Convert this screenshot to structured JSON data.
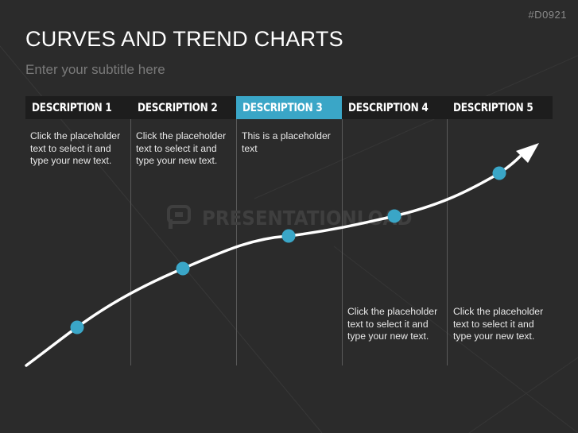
{
  "slide": {
    "code": "#D0921",
    "title": "CURVES AND TREND CHARTS",
    "subtitle": "Enter your subtitle here",
    "watermark": "PRESENTATIONLOAD",
    "accent_color": "#3aa6c7"
  },
  "columns": [
    {
      "label": "DESCRIPTION 1",
      "text": "Click the placeholder text to select it and type your new text.",
      "text_position": "top"
    },
    {
      "label": "DESCRIPTION 2",
      "text": "Click the placeholder text to select it and type your new text.",
      "text_position": "top"
    },
    {
      "label": "DESCRIPTION 3",
      "text": "This is a placeholder text",
      "text_position": "top",
      "active": true
    },
    {
      "label": "DESCRIPTION 4",
      "text": "Click the placeholder text to select it and type your new text.",
      "text_position": "bottom"
    },
    {
      "label": "DESCRIPTION 5",
      "text": "Click the placeholder text to select it and type your new text.",
      "text_position": "bottom"
    }
  ],
  "trend": {
    "markers": 5,
    "line_color": "#ffffff",
    "marker_color": "#3aa6c7"
  }
}
